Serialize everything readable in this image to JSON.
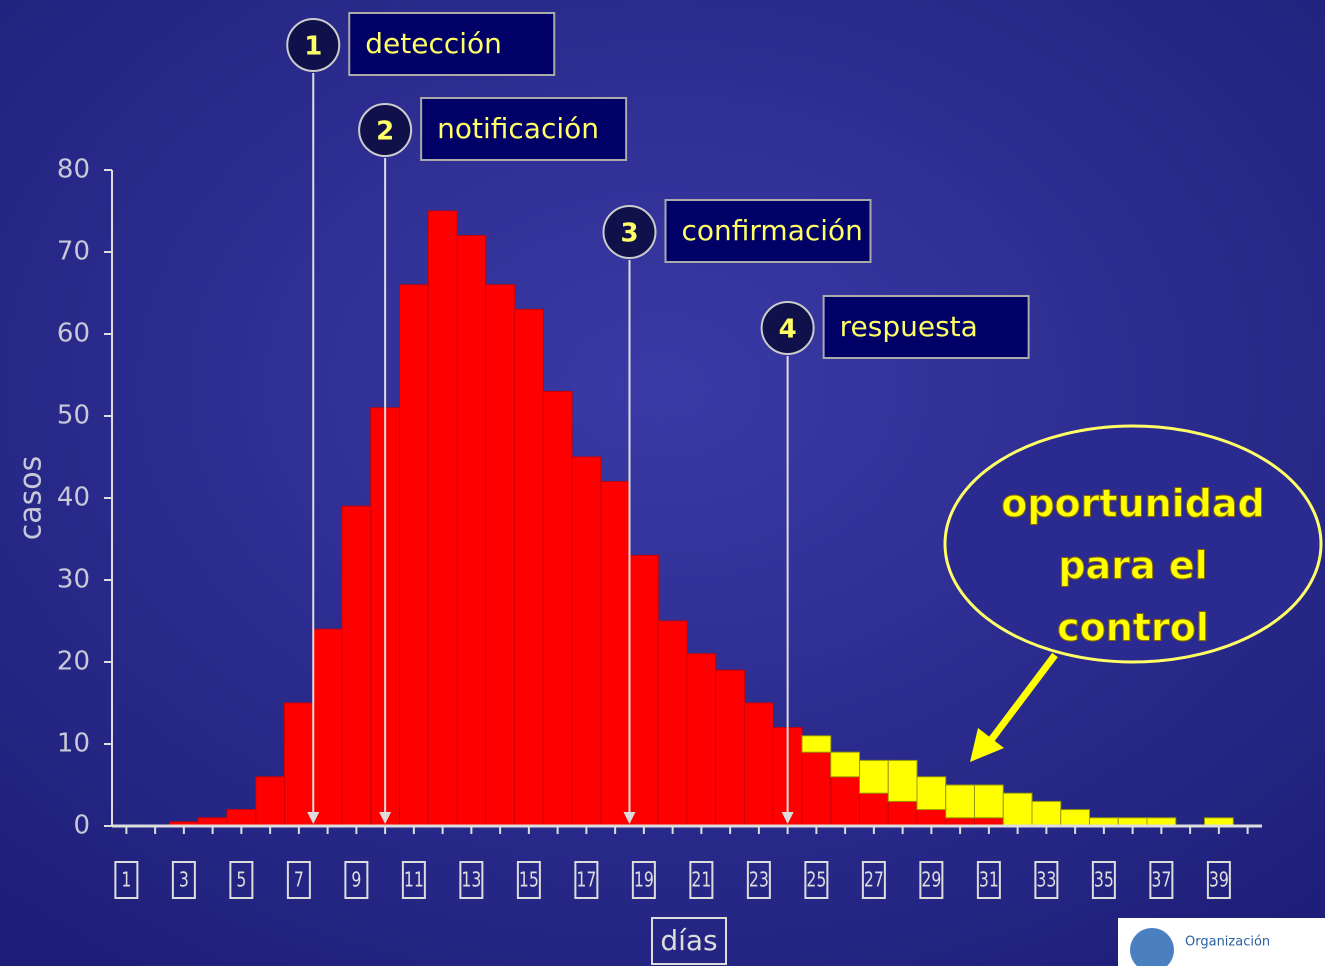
{
  "chart_data": {
    "type": "bar",
    "stacked": true,
    "ylabel": "casos",
    "xlabel": "días",
    "categories": [
      "1",
      null,
      "3",
      null,
      "5",
      null,
      "7",
      null,
      "9",
      null,
      "11",
      null,
      "13",
      null,
      "15",
      null,
      "17",
      null,
      "19",
      null,
      "21",
      null,
      "23",
      null,
      "25",
      null,
      "27",
      null,
      "29",
      null,
      "31",
      null,
      "33",
      null,
      "35",
      null,
      "37",
      null,
      "39",
      null
    ],
    "series": [
      {
        "color": "#ff0000",
        "values": [
          0,
          0,
          0.5,
          1,
          2,
          6,
          15,
          24,
          39,
          51,
          66,
          75,
          72,
          66,
          63,
          53,
          45,
          42,
          33,
          25,
          21,
          19,
          15,
          12,
          9,
          6,
          4,
          3,
          2,
          1,
          1,
          0,
          0,
          0,
          0,
          0,
          0,
          0,
          0,
          0
        ]
      },
      {
        "color": "#ffff00",
        "values": [
          0,
          0,
          0,
          0,
          0,
          0,
          0,
          0,
          0,
          0,
          0,
          0,
          0,
          0,
          0,
          0,
          0,
          0,
          0,
          0,
          0,
          0,
          0,
          0,
          2,
          3,
          4,
          5,
          4,
          4,
          4,
          4,
          3,
          2,
          1,
          1,
          1,
          0,
          1,
          0
        ]
      }
    ],
    "ylim": [
      0,
      80
    ],
    "yticks": [
      0,
      10,
      20,
      30,
      40,
      50,
      60,
      70,
      80
    ],
    "annotations": [
      {
        "number": "1",
        "text": "detección",
        "x": 7.5
      },
      {
        "number": "2",
        "text": "notificación",
        "x": 10
      },
      {
        "number": "3",
        "text": "confirmación",
        "x": 18.5
      },
      {
        "number": "4",
        "text": "respuesta",
        "x": 24
      }
    ],
    "callout": [
      "oportunidad",
      "para el",
      "control"
    ],
    "logo": "Organización"
  }
}
